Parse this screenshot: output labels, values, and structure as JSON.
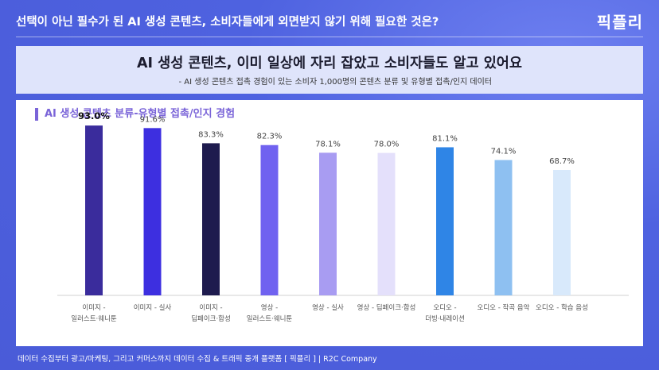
{
  "header": {
    "title": "선택이 아닌 필수가 된 AI 생성 콘텐츠, 소비자들에게 외면받지 않기 위해 필요한 것은?",
    "logo": "픽플리"
  },
  "banner": {
    "title": "AI 생성 콘텐츠, 이미 일상에 자리 잡았고 소비자들도 알고 있어요",
    "subtitle": "- AI 생성 콘텐츠 접촉 경험이 있는 소비자 1,000명의 콘텐츠 분류 및 유형별 접촉/인지 데이터"
  },
  "chart_data": {
    "type": "bar",
    "title": "AI 생성 콘텐츠 분류-유형별 접촉/인지 경험",
    "categories": [
      [
        "이미지 -",
        "일러스트·웨니툰"
      ],
      [
        "이미지 - 실사"
      ],
      [
        "이미지 -",
        "딥페이크·합성"
      ],
      [
        "영상 -",
        "일러스트·웨니툰"
      ],
      [
        "영상 - 실사"
      ],
      [
        "영상 - 딥페이크·합성"
      ],
      [
        "오디오 -",
        "더빙·내레이션"
      ],
      [
        "오디오 - 작곡 음악"
      ],
      [
        "오디오 - 학습 음성"
      ]
    ],
    "values": [
      93.0,
      91.6,
      83.3,
      82.3,
      78.1,
      78.0,
      81.1,
      74.1,
      68.7
    ],
    "value_labels": [
      "93.0%",
      "91.6%",
      "83.3%",
      "82.3%",
      "78.1%",
      "78.0%",
      "81.1%",
      "74.1%",
      "68.7%"
    ],
    "colors": [
      "#3a2c9c",
      "#3d2fe0",
      "#1e1b4e",
      "#7062f0",
      "#a89cf2",
      "#e4e0fb",
      "#2f85e6",
      "#8ec0f1",
      "#d8e9fb"
    ],
    "highlight_index": 0
  },
  "footer": {
    "text": "데이터 수집부터 광고/마케팅, 그리고 커머스까지 데이터 수집 & 트래픽 중개 플랫폼 [ 픽플리 ]  |  R2C Company"
  }
}
